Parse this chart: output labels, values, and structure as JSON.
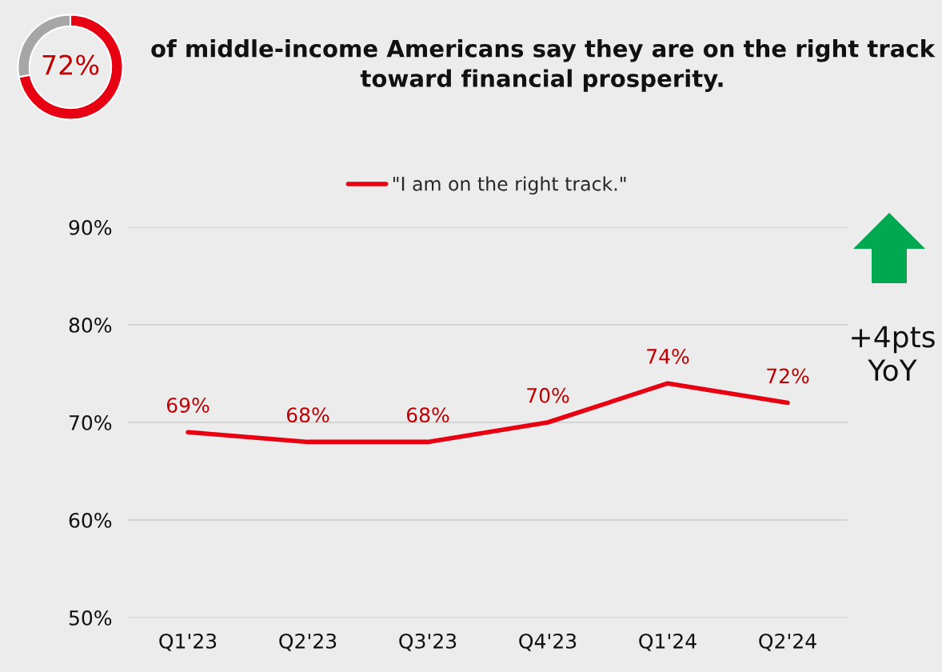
{
  "chart_data": [
    {
      "type": "donut",
      "title": "of middle-income Americans say they are on the right track toward financial prosperity.",
      "categories": [
        null,
        null
      ],
      "values": [
        72,
        28
      ],
      "colors": [
        "#e60012",
        "#a6a6a6"
      ],
      "annotations": [
        "72%"
      ]
    },
    {
      "type": "line",
      "categories": [
        "Q1'23",
        "Q2'23",
        "Q3'23",
        "Q4'23",
        "Q1'24",
        "Q2'24"
      ],
      "series": [
        {
          "name": "\"I am on the right track.\"",
          "color": "#e60012",
          "values": [
            69,
            68,
            68,
            70,
            74,
            72
          ]
        }
      ],
      "value_labels": [
        "69%",
        "68%",
        "68%",
        "70%",
        "74%",
        "72%"
      ],
      "ylim": [
        50,
        90
      ],
      "yticks": [
        {
          "value": 50,
          "label": "50%"
        },
        {
          "value": 60,
          "label": "60%"
        },
        {
          "value": 70,
          "label": "70%"
        },
        {
          "value": 80,
          "label": "80%"
        },
        {
          "value": 90,
          "label": "90%"
        }
      ],
      "grid": "y",
      "legend": "top",
      "marker": "none",
      "line_style": "solid",
      "annotations": [
        "+4pts\nYoY"
      ]
    }
  ]
}
